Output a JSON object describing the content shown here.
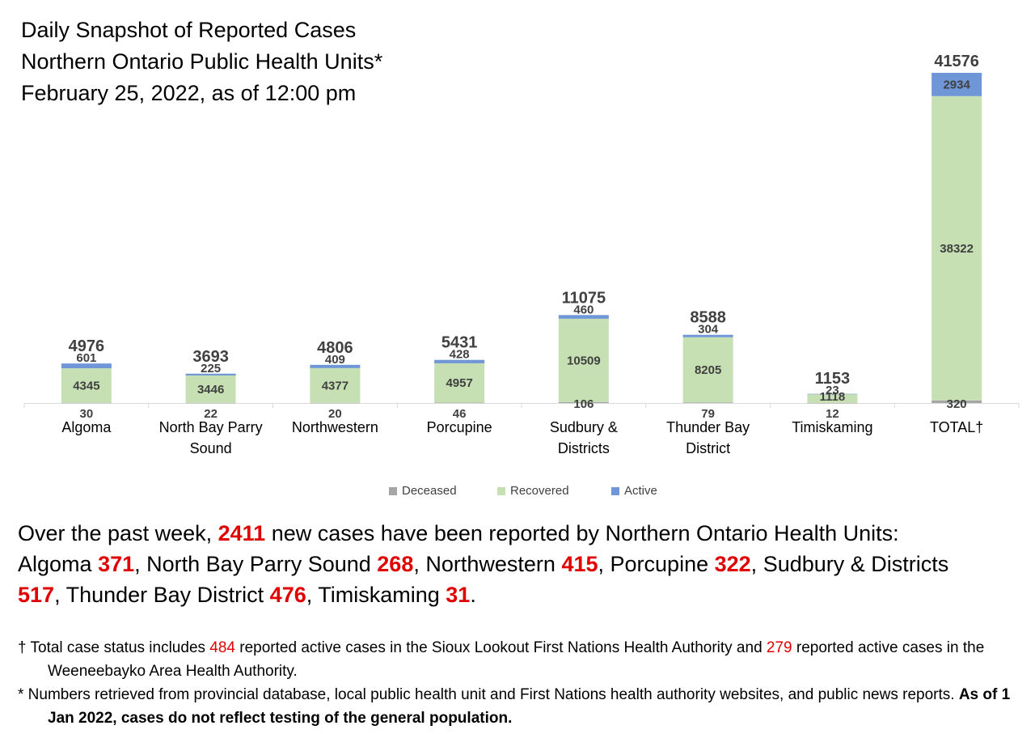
{
  "title": {
    "line1": "Daily Snapshot of Reported Cases",
    "line2": "Northern Ontario Public Health Units*",
    "line3": "February 25, 2022, as of 12:00 pm"
  },
  "colors": {
    "deceased": "#a5a5a5",
    "recovered": "#c6e0b4",
    "active": "#6f96d6",
    "highlight": "#e00000"
  },
  "legend": [
    {
      "label": "Deceased",
      "color": "#a5a5a5"
    },
    {
      "label": "Recovered",
      "color": "#c6e0b4"
    },
    {
      "label": "Active",
      "color": "#6f96d6"
    }
  ],
  "chart_data": {
    "type": "bar",
    "stacked": true,
    "categories": [
      [
        "Algoma"
      ],
      [
        "North Bay Parry",
        "Sound"
      ],
      [
        "Northwestern"
      ],
      [
        "Porcupine"
      ],
      [
        "Sudbury &",
        "Districts"
      ],
      [
        "Thunder Bay",
        "District"
      ],
      [
        "Timiskaming"
      ],
      [
        "TOTAL†"
      ]
    ],
    "series": [
      {
        "name": "Deceased",
        "values": [
          30,
          22,
          20,
          46,
          106,
          79,
          12,
          320
        ]
      },
      {
        "name": "Recovered",
        "values": [
          4345,
          3446,
          4377,
          4957,
          10509,
          8205,
          1118,
          38322
        ]
      },
      {
        "name": "Active",
        "values": [
          601,
          225,
          409,
          428,
          460,
          304,
          23,
          2934
        ]
      }
    ],
    "totals": [
      4976,
      3693,
      4806,
      5431,
      11075,
      8588,
      1153,
      41576
    ],
    "ylim": [
      0,
      41576
    ],
    "grid": false,
    "legend_position": "bottom"
  },
  "summary": {
    "intro": "Over the past week, ",
    "total_new": "2411",
    "intro_end": " new cases have been reported by Northern Ontario Health Units:",
    "items": [
      {
        "name": "Algoma ",
        "value": "371",
        "sep": ", "
      },
      {
        "name": "North Bay Parry Sound ",
        "value": "268",
        "sep": ", "
      },
      {
        "name": "Northwestern ",
        "value": "415",
        "sep": ", "
      },
      {
        "name": "Porcupine ",
        "value": "322",
        "sep": ", "
      },
      {
        "name": "Sudbury & Districts ",
        "value": "517",
        "sep": ", "
      },
      {
        "name": "Thunder Bay District ",
        "value": "476",
        "sep": ", "
      },
      {
        "name": "Timiskaming ",
        "value": "31",
        "sep": "."
      }
    ]
  },
  "notes": {
    "dagger_prefix": "† Total case status includes ",
    "sioux_count": "484",
    "dagger_mid": " reported active cases in the Sioux Lookout First Nations Health Authority and ",
    "weeneebayko_count": "279",
    "dagger_end": " reported active cases in the Weeneebayko Area Health Authority.",
    "star_text": "* Numbers retrieved from provincial database, local public health unit and First Nations health authority websites, and public news reports. ",
    "star_bold": "As of 1 Jan 2022, cases do not reflect testing of the general population."
  }
}
